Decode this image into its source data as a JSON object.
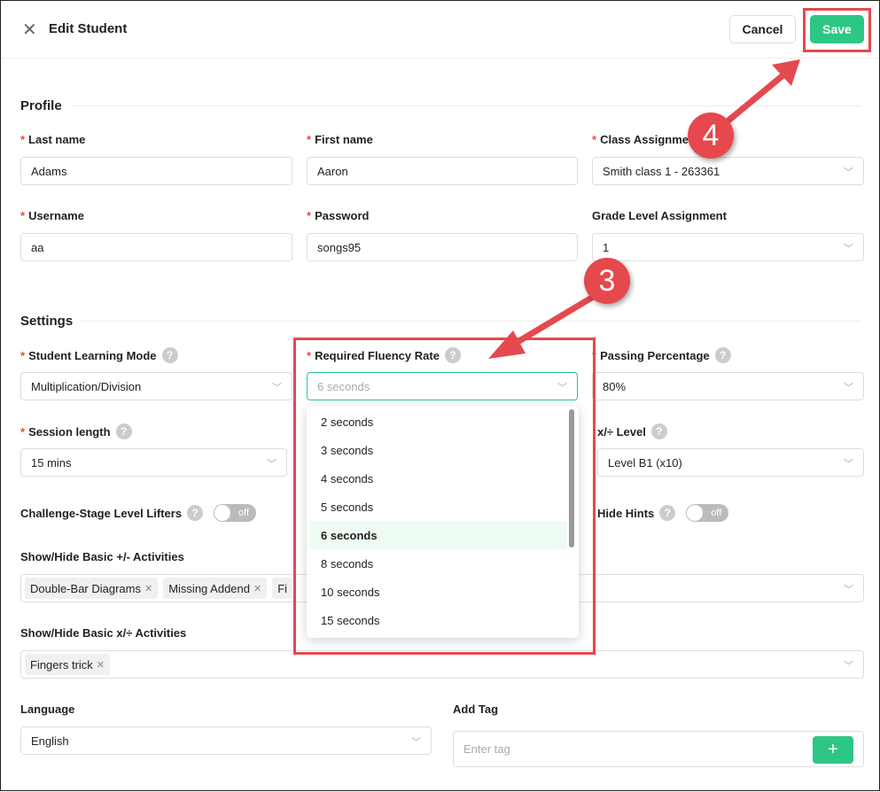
{
  "header": {
    "title": "Edit Student",
    "cancel": "Cancel",
    "save": "Save"
  },
  "profile": {
    "title": "Profile",
    "last_name": {
      "label": "Last name",
      "value": "Adams"
    },
    "first_name": {
      "label": "First name",
      "value": "Aaron"
    },
    "class": {
      "label": "Class Assignment",
      "value": "Smith class 1 - 263361"
    },
    "username": {
      "label": "Username",
      "value": "aa"
    },
    "password": {
      "label": "Password",
      "value": "songs95"
    },
    "grade": {
      "label": "Grade Level Assignment",
      "value": "1"
    }
  },
  "settings": {
    "title": "Settings",
    "mode": {
      "label": "Student Learning Mode",
      "value": "Multiplication/Division"
    },
    "fluency": {
      "label": "Required Fluency Rate",
      "placeholder": "6 seconds",
      "options": [
        "2 seconds",
        "3 seconds",
        "4 seconds",
        "5 seconds",
        "6 seconds",
        "8 seconds",
        "10 seconds",
        "15 seconds"
      ],
      "selected": "6 seconds"
    },
    "passing": {
      "label": "Passing Percentage",
      "value": "80%"
    },
    "session": {
      "label": "Session length",
      "value": "15 mins"
    },
    "level": {
      "label": "x/÷ Level",
      "value": "Level B1 (x10)"
    },
    "lifters": {
      "label": "Challenge-Stage Level Lifters",
      "state": "off"
    },
    "hints": {
      "label": "Hide Hints",
      "state": "off"
    },
    "basic_add": {
      "label": "Show/Hide Basic +/- Activities",
      "tags": [
        "Double-Bar Diagrams",
        "Missing Addend",
        "Fi"
      ]
    },
    "basic_mult": {
      "label": "Show/Hide Basic x/÷ Activities",
      "tags": [
        "Fingers trick"
      ]
    },
    "language": {
      "label": "Language",
      "value": "English"
    },
    "add_tag": {
      "label": "Add Tag",
      "placeholder": "Enter tag"
    }
  },
  "annotations": {
    "step3": "3",
    "step4": "4",
    "color": "#e5484d"
  },
  "colors": {
    "accent": "#2ec685",
    "required": "#e74c3c"
  }
}
